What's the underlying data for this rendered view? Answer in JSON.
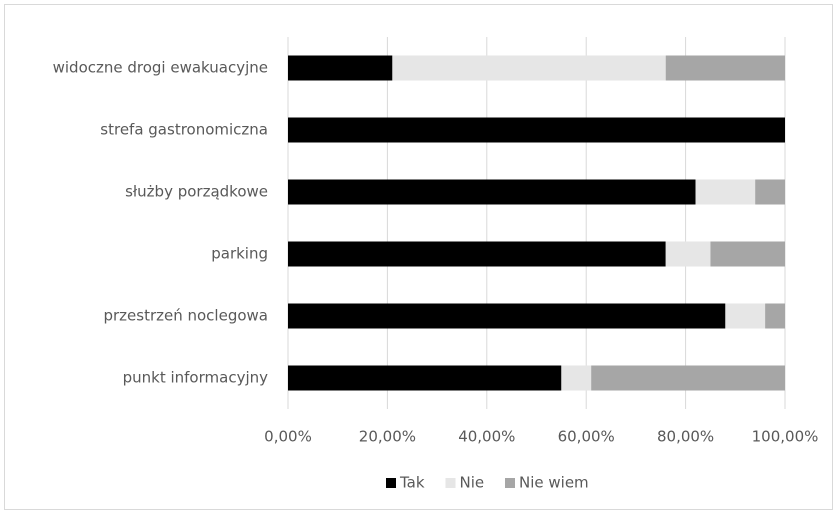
{
  "chart_data": {
    "type": "stacked-bar-horizontal",
    "categories": [
      "widoczne drogi ewakuacyjne",
      "strefa gastronomiczna",
      "służby porządkowe",
      "parking",
      "przestrzeń noclegowa",
      "punkt informacyjny"
    ],
    "series": [
      {
        "name": "Tak",
        "color": "#000000",
        "values": [
          21,
          100,
          82,
          76,
          88,
          55
        ]
      },
      {
        "name": "Nie",
        "color": "#e6e6e6",
        "values": [
          55,
          0,
          12,
          9,
          8,
          6
        ]
      },
      {
        "name": "Nie wiem",
        "color": "#a6a6a6",
        "values": [
          24,
          0,
          6,
          15,
          4,
          39
        ]
      }
    ],
    "xlim": [
      0,
      100
    ],
    "xticks": [
      {
        "value": 0,
        "label": "0,00%"
      },
      {
        "value": 20,
        "label": "20,00%"
      },
      {
        "value": 40,
        "label": "40,00%"
      },
      {
        "value": 60,
        "label": "60,00%"
      },
      {
        "value": 80,
        "label": "80,00%"
      },
      {
        "value": 100,
        "label": "100,00%"
      }
    ],
    "grid": true,
    "legend": "bottom"
  }
}
